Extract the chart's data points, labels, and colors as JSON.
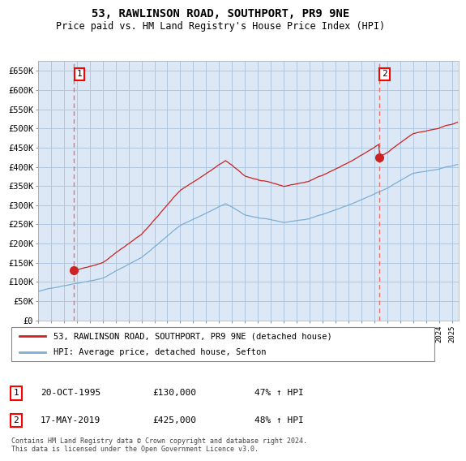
{
  "title": "53, RAWLINSON ROAD, SOUTHPORT, PR9 9NE",
  "subtitle": "Price paid vs. HM Land Registry's House Price Index (HPI)",
  "ylabel_ticks": [
    "£0",
    "£50K",
    "£100K",
    "£150K",
    "£200K",
    "£250K",
    "£300K",
    "£350K",
    "£400K",
    "£450K",
    "£500K",
    "£550K",
    "£600K",
    "£650K"
  ],
  "ytick_values": [
    0,
    50000,
    100000,
    150000,
    200000,
    250000,
    300000,
    350000,
    400000,
    450000,
    500000,
    550000,
    600000,
    650000
  ],
  "ylim": [
    0,
    675000
  ],
  "xlim": [
    1993.0,
    2025.5
  ],
  "sale1": {
    "date_num": 1995.79,
    "price": 130000,
    "label": "1"
  },
  "sale2": {
    "date_num": 2019.37,
    "price": 425000,
    "label": "2"
  },
  "legend_line1": "53, RAWLINSON ROAD, SOUTHPORT, PR9 9NE (detached house)",
  "legend_line2": "HPI: Average price, detached house, Sefton",
  "footnote": "Contains HM Land Registry data © Crown copyright and database right 2024.\nThis data is licensed under the Open Government Licence v3.0.",
  "hpi_color": "#7bafd4",
  "sale_color": "#cc2222",
  "dashed_color": "#e87070",
  "bg_color": "#dce8f5",
  "grid_color": "#b0c8e0",
  "label1_date": "20-OCT-1995",
  "label1_price": "£130,000",
  "label1_hpi": "47% ↑ HPI",
  "label2_date": "17-MAY-2019",
  "label2_price": "£425,000",
  "label2_hpi": "48% ↑ HPI"
}
